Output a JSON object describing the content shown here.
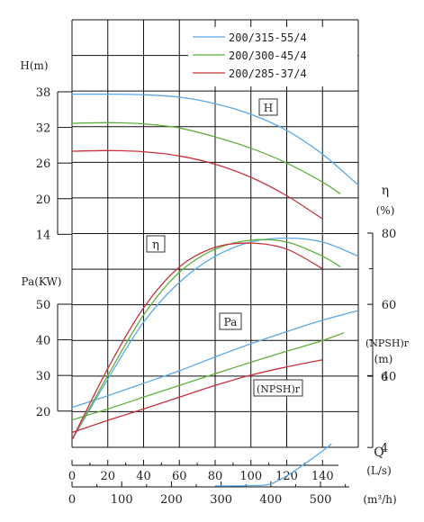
{
  "chart_data": {
    "type": "line",
    "legend": {
      "placement": "top-right",
      "entries": [
        {
          "label": "200/315-55/4",
          "color": "#5aa9e6"
        },
        {
          "label": "200/300-45/4",
          "color": "#5fb03a"
        },
        {
          "label": "200/285-37/4",
          "color": "#c8323c"
        }
      ]
    },
    "grid": true,
    "axes": {
      "head": {
        "label": "H(m)",
        "ticks": [
          "38",
          "32",
          "26",
          "20",
          "14"
        ],
        "range": [
          14,
          38
        ]
      },
      "power": {
        "label": "Pa(KW)",
        "ticks": [
          "50",
          "40",
          "30",
          "20"
        ],
        "range": [
          20,
          50
        ]
      },
      "efficiency": {
        "label": "η",
        "unit": "(%)",
        "ticks": [
          "80",
          "60",
          "40"
        ],
        "range": [
          40,
          80
        ]
      },
      "npsh": {
        "label": "(NPSH)r",
        "unit": "(m)",
        "ticks": [
          "6",
          "4"
        ],
        "range": [
          4,
          6
        ]
      },
      "flow_ls": {
        "label": "Q",
        "unit": "(L/s)",
        "ticks": [
          "0",
          "20",
          "40",
          "60",
          "80",
          "100",
          "120",
          "140"
        ],
        "range": [
          0,
          160
        ]
      },
      "flow_m3h": {
        "unit": "(m³/h)",
        "ticks": [
          "0",
          "100",
          "200",
          "300",
          "400",
          "500"
        ],
        "range": [
          0,
          576
        ]
      }
    },
    "curve_labels": {
      "head": "H",
      "efficiency": "η",
      "power": "Pa",
      "npsh": "(NPSH)r"
    },
    "series": [
      {
        "name": "200/315-55/4",
        "color": "#5aa9e6",
        "head": {
          "x": [
            0,
            20,
            40,
            60,
            80,
            100,
            120,
            140,
            160
          ],
          "y": [
            37.6,
            37.6,
            37.5,
            37.1,
            36.0,
            34.2,
            31.5,
            27.5,
            22.3
          ]
        },
        "efficiency": {
          "x": [
            0,
            20,
            40,
            60,
            80,
            100,
            120,
            140,
            160
          ],
          "y": [
            22,
            39,
            55,
            66.2,
            73.5,
            77.5,
            78.6,
            77.5,
            73.5
          ]
        },
        "power": {
          "x": [
            0,
            20,
            40,
            60,
            80,
            100,
            120,
            140,
            160
          ],
          "y": [
            21,
            24.3,
            27.8,
            31.3,
            35.2,
            38.9,
            42.3,
            45.5,
            48.2
          ]
        },
        "npsh": {
          "x": [
            80,
            90,
            100,
            110,
            120,
            130,
            140,
            145
          ],
          "y": [
            2.92,
            2.92,
            2.93,
            2.96,
            3.2,
            3.54,
            3.9,
            4.1
          ]
        }
      },
      {
        "name": "200/300-45/4",
        "color": "#5fb03a",
        "head": {
          "x": [
            0,
            20,
            40,
            60,
            80,
            100,
            120,
            140,
            150
          ],
          "y": [
            32.7,
            32.8,
            32.6,
            31.9,
            30.4,
            28.5,
            26.0,
            22.8,
            20.8
          ]
        },
        "efficiency": {
          "x": [
            0,
            20,
            40,
            60,
            80,
            100,
            120,
            140,
            150
          ],
          "y": [
            22,
            40,
            57,
            69,
            75.5,
            78,
            77.5,
            73.5,
            70.5
          ]
        },
        "power": {
          "x": [
            0,
            20,
            40,
            60,
            80,
            100,
            120,
            140,
            152
          ],
          "y": [
            17.5,
            20.6,
            23.9,
            27.2,
            30.5,
            33.7,
            36.8,
            39.8,
            42.0
          ]
        }
      },
      {
        "name": "200/285-37/4",
        "color": "#c8323c",
        "head": {
          "x": [
            0,
            20,
            40,
            60,
            80,
            100,
            120,
            140
          ],
          "y": [
            28.0,
            28.1,
            27.9,
            27.2,
            25.8,
            23.6,
            20.5,
            16.6
          ]
        },
        "efficiency": {
          "x": [
            0,
            20,
            40,
            60,
            80,
            100,
            120,
            140
          ],
          "y": [
            22,
            42,
            59,
            70.5,
            76,
            77.2,
            75.5,
            70
          ]
        },
        "power": {
          "x": [
            0,
            20,
            40,
            60,
            80,
            100,
            120,
            140
          ],
          "y": [
            14,
            17.4,
            20.6,
            23.9,
            27.2,
            30.1,
            32.4,
            34.4
          ]
        }
      }
    ]
  }
}
